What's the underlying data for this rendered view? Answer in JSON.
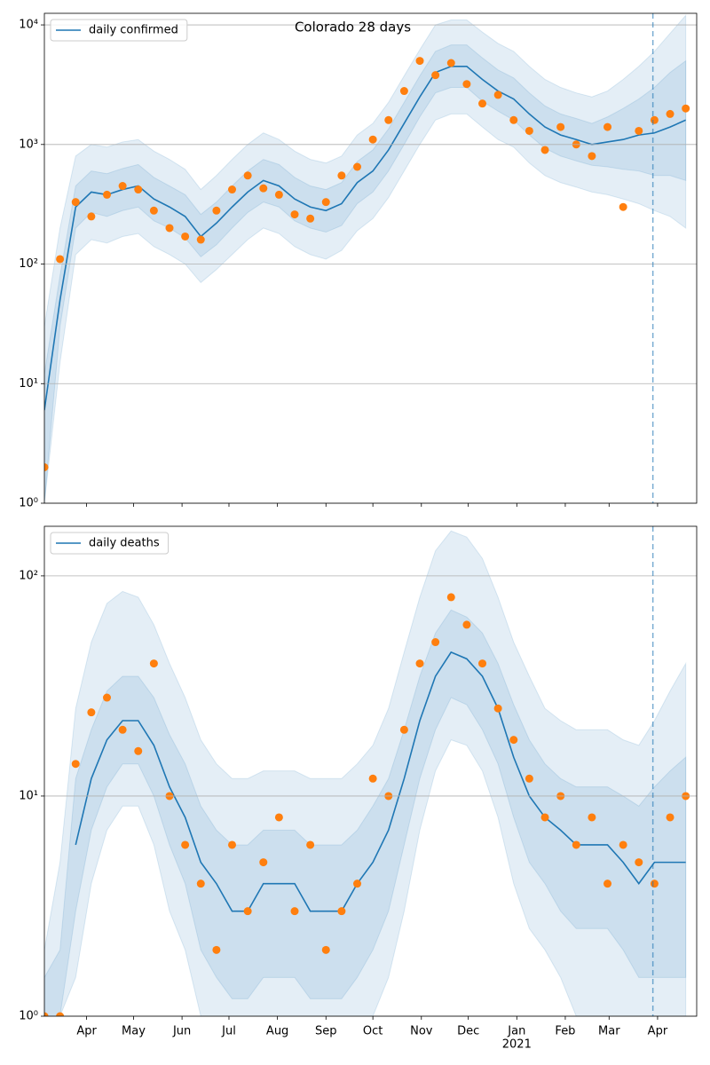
{
  "chart_data": [
    {
      "type": "line",
      "title": "Colorado 28 days",
      "x": [
        4,
        14,
        24,
        34,
        44,
        54,
        64,
        74,
        84,
        94,
        104,
        114,
        124,
        134,
        144,
        154,
        164,
        174,
        184,
        194,
        204,
        214,
        224,
        234,
        244,
        254,
        264,
        274,
        284,
        294,
        304,
        314,
        324,
        334,
        344,
        354,
        364,
        374,
        384,
        394,
        404,
        414
      ],
      "xlim": [
        4,
        421
      ],
      "ylim": [
        1,
        12500
      ],
      "log_y": true,
      "grid": true,
      "legend": "upper left",
      "vline": 393,
      "yticks": [
        {
          "value": 1,
          "label": "10⁰"
        },
        {
          "value": 10,
          "label": "10¹"
        },
        {
          "value": 100,
          "label": "10²"
        },
        {
          "value": 1000,
          "label": "10³"
        },
        {
          "value": 10000,
          "label": "10⁴"
        }
      ],
      "series": [
        {
          "name": "daily confirmed",
          "color": "#1f77b4",
          "values": [
            6,
            50,
            300,
            400,
            380,
            420,
            450,
            350,
            300,
            250,
            170,
            220,
            300,
            400,
            500,
            450,
            350,
            300,
            280,
            320,
            480,
            600,
            900,
            1500,
            2500,
            4000,
            4500,
            4500,
            3500,
            2800,
            2400,
            1800,
            1400,
            1200,
            1100,
            1000,
            1050,
            1100,
            1200,
            1250,
            1400,
            1600
          ]
        }
      ],
      "points": {
        "color": "#ff7f0e",
        "values": [
          2,
          110,
          330,
          250,
          380,
          450,
          420,
          280,
          200,
          170,
          160,
          280,
          420,
          550,
          430,
          380,
          260,
          240,
          330,
          550,
          650,
          1100,
          1600,
          2800,
          5000,
          3800,
          4800,
          3200,
          2200,
          2600,
          1600,
          1300,
          900,
          1400,
          1000,
          800,
          1400,
          300,
          1300,
          1600,
          1800,
          2000
        ]
      },
      "bands": [
        {
          "color": "#1f77b4",
          "lower": [
            1,
            15,
            120,
            160,
            150,
            170,
            180,
            140,
            120,
            100,
            70,
            90,
            120,
            160,
            200,
            180,
            140,
            120,
            110,
            130,
            190,
            240,
            360,
            600,
            1000,
            1600,
            1800,
            1800,
            1400,
            1100,
            950,
            700,
            550,
            480,
            440,
            400,
            380,
            350,
            320,
            280,
            250,
            200
          ],
          "upper": [
            30,
            200,
            800,
            1000,
            950,
            1050,
            1100,
            880,
            750,
            620,
            420,
            550,
            750,
            1000,
            1250,
            1100,
            880,
            750,
            700,
            800,
            1200,
            1500,
            2250,
            3750,
            6200,
            10000,
            11000,
            11000,
            8700,
            7000,
            6000,
            4500,
            3500,
            3000,
            2700,
            2500,
            2800,
            3500,
            4500,
            6000,
            8500,
            12000
          ]
        },
        {
          "color": "#1f77b4",
          "lower": [
            1,
            30,
            200,
            270,
            250,
            280,
            300,
            230,
            200,
            165,
            115,
            145,
            200,
            270,
            330,
            300,
            230,
            200,
            185,
            210,
            320,
            400,
            600,
            1000,
            1700,
            2700,
            3000,
            3000,
            2300,
            1900,
            1600,
            1200,
            930,
            800,
            730,
            670,
            650,
            620,
            600,
            550,
            550,
            500
          ],
          "upper": [
            12,
            80,
            450,
            600,
            570,
            630,
            680,
            530,
            450,
            380,
            260,
            330,
            450,
            600,
            750,
            680,
            530,
            450,
            420,
            480,
            720,
            900,
            1350,
            2250,
            3750,
            6000,
            6800,
            6800,
            5300,
            4200,
            3600,
            2700,
            2100,
            1800,
            1650,
            1500,
            1700,
            2000,
            2400,
            3000,
            4000,
            5000
          ]
        }
      ]
    },
    {
      "type": "line",
      "x": [
        4,
        14,
        24,
        34,
        44,
        54,
        64,
        74,
        84,
        94,
        104,
        114,
        124,
        134,
        144,
        154,
        164,
        174,
        184,
        194,
        204,
        214,
        224,
        234,
        244,
        254,
        264,
        274,
        284,
        294,
        304,
        314,
        324,
        334,
        344,
        354,
        364,
        374,
        384,
        394,
        404,
        414
      ],
      "xlim": [
        4,
        421
      ],
      "ylim": [
        1,
        168
      ],
      "log_y": true,
      "grid": true,
      "legend": "upper left",
      "vline": 393,
      "xticks": [
        {
          "value": 31,
          "label": "Apr"
        },
        {
          "value": 61,
          "label": "May"
        },
        {
          "value": 92,
          "label": "Jun"
        },
        {
          "value": 122,
          "label": "Jul"
        },
        {
          "value": 153,
          "label": "Aug"
        },
        {
          "value": 184,
          "label": "Sep"
        },
        {
          "value": 214,
          "label": "Oct"
        },
        {
          "value": 245,
          "label": "Nov"
        },
        {
          "value": 275,
          "label": "Dec"
        },
        {
          "value": 306,
          "label": "Jan",
          "sublabel": "2021"
        },
        {
          "value": 337,
          "label": "Feb"
        },
        {
          "value": 365,
          "label": "Mar"
        },
        {
          "value": 396,
          "label": "Apr"
        }
      ],
      "yticks": [
        {
          "value": 1,
          "label": "10⁰"
        },
        {
          "value": 10,
          "label": "10¹"
        },
        {
          "value": 100,
          "label": "10²"
        }
      ],
      "series": [
        {
          "name": "daily deaths",
          "color": "#1f77b4",
          "values": [
            null,
            null,
            6,
            12,
            18,
            22,
            22,
            17,
            11,
            8,
            5,
            4,
            3,
            3,
            4,
            4,
            4,
            3,
            3,
            3,
            4,
            5,
            7,
            12,
            22,
            35,
            45,
            42,
            35,
            25,
            15,
            10,
            8,
            7,
            6,
            6,
            6,
            5,
            4,
            5,
            5,
            5
          ]
        }
      ],
      "points": {
        "color": "#ff7f0e",
        "values": [
          1,
          1,
          14,
          24,
          28,
          20,
          16,
          40,
          10,
          6,
          4,
          2,
          6,
          3,
          5,
          8,
          3,
          6,
          2,
          3,
          4,
          12,
          10,
          20,
          40,
          50,
          80,
          60,
          40,
          25,
          18,
          12,
          8,
          10,
          6,
          8,
          4,
          6,
          5,
          4,
          8,
          10
        ]
      },
      "bands": [
        {
          "color": "#1f77b4",
          "lower": [
            1,
            1,
            1.5,
            4,
            7,
            9,
            9,
            6,
            3,
            2,
            1,
            1,
            1,
            1,
            1,
            1,
            1,
            1,
            1,
            1,
            1,
            1,
            1.5,
            3,
            7,
            13,
            18,
            17,
            13,
            8,
            4,
            2.5,
            2,
            1.5,
            1,
            1,
            1,
            1,
            1,
            1,
            1,
            1
          ],
          "upper": [
            2,
            5,
            25,
            50,
            75,
            85,
            80,
            60,
            40,
            28,
            18,
            14,
            12,
            12,
            13,
            13,
            13,
            12,
            12,
            12,
            14,
            17,
            25,
            45,
            80,
            130,
            160,
            150,
            120,
            80,
            50,
            35,
            25,
            22,
            20,
            20,
            20,
            18,
            17,
            22,
            30,
            40
          ]
        },
        {
          "color": "#1f77b4",
          "lower": [
            1,
            1,
            3,
            7,
            11,
            14,
            14,
            10,
            6,
            4,
            2,
            1.5,
            1.2,
            1.2,
            1.5,
            1.5,
            1.5,
            1.2,
            1.2,
            1.2,
            1.5,
            2,
            3,
            6,
            12,
            20,
            28,
            26,
            20,
            14,
            8,
            5,
            4,
            3,
            2.5,
            2.5,
            2.5,
            2,
            1.5,
            1.5,
            1.5,
            1.5
          ],
          "upper": [
            1.5,
            2,
            12,
            20,
            30,
            35,
            35,
            28,
            19,
            14,
            9,
            7,
            6,
            6,
            7,
            7,
            7,
            6,
            6,
            6,
            7,
            9,
            12,
            20,
            35,
            55,
            70,
            65,
            55,
            40,
            26,
            18,
            14,
            12,
            11,
            11,
            11,
            10,
            9,
            11,
            13,
            15
          ]
        }
      ]
    }
  ]
}
